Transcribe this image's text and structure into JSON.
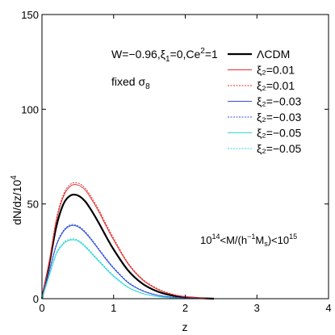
{
  "chart_data": {
    "type": "line",
    "xlabel": "z",
    "ylabel": "dN/dz/10",
    "ylabel_exp": "4",
    "xlim": [
      0,
      4
    ],
    "ylim": [
      0,
      150
    ],
    "xticks": [
      0,
      1,
      2,
      3,
      4
    ],
    "yticks": [
      0,
      50,
      100,
      150
    ],
    "grid": false,
    "legend_placement": "top-right",
    "annotations": {
      "params": {
        "base": "W=−0.96,ξ",
        "sub1": "1",
        "mid": "=0,Ce",
        "sup": "2",
        "end": "=1"
      },
      "fixed": {
        "base": "fixed σ",
        "sub": "8"
      },
      "mass": {
        "p1": "10",
        "s1": "14",
        "p2": "<M/(h",
        "s2": "−1",
        "p3": "M",
        "s3": "s",
        "p4": ")<10",
        "s4": "15"
      }
    },
    "series": [
      {
        "name": "ΛCDM",
        "color": "#000000",
        "width": 2.2,
        "dash": "",
        "x": [
          0,
          0.1,
          0.2,
          0.3,
          0.4,
          0.5,
          0.6,
          0.7,
          0.8,
          0.9,
          1.0,
          1.2,
          1.4,
          1.6,
          1.8,
          2.0,
          2.2,
          2.4
        ],
        "y": [
          0,
          18,
          38,
          50,
          54.5,
          54.5,
          51.5,
          46,
          39.5,
          32.5,
          26,
          15,
          8,
          4,
          1.8,
          0.8,
          0.3,
          0
        ]
      },
      {
        "name": "ξ₂=0.01",
        "color": "#e03030",
        "width": 1,
        "dash": "",
        "x": [
          0,
          0.1,
          0.2,
          0.3,
          0.4,
          0.5,
          0.6,
          0.7,
          0.8,
          0.9,
          1.0,
          1.2,
          1.4,
          1.6,
          1.8,
          2.0,
          2.2,
          2.4
        ],
        "y": [
          0,
          19,
          41,
          54,
          59.5,
          60,
          57.5,
          52,
          45.5,
          38,
          31,
          18.5,
          10,
          5.2,
          2.4,
          1.0,
          0.4,
          0
        ]
      },
      {
        "name": "ξ₂=0.01",
        "color": "#e03030",
        "width": 1,
        "dash": "2,1.5",
        "x": [
          0,
          0.1,
          0.2,
          0.3,
          0.4,
          0.5,
          0.6,
          0.7,
          0.8,
          0.9,
          1.0,
          1.2,
          1.4,
          1.6,
          1.8,
          2.0,
          2.2,
          2.4
        ],
        "y": [
          0,
          19.5,
          42,
          55,
          60.5,
          61,
          58.5,
          53,
          46.5,
          39,
          32,
          19,
          10.5,
          5.5,
          2.6,
          1.1,
          0.4,
          0
        ]
      },
      {
        "name": "ξ₂=−0.03",
        "color": "#3050e0",
        "width": 1,
        "dash": "",
        "x": [
          0,
          0.1,
          0.2,
          0.3,
          0.4,
          0.5,
          0.6,
          0.7,
          0.8,
          0.9,
          1.0,
          1.2,
          1.4,
          1.6,
          1.8,
          2.0,
          2.2
        ],
        "y": [
          0,
          14,
          28,
          35.5,
          38.5,
          38,
          35,
          30.5,
          25.5,
          20.5,
          16,
          8.5,
          4.2,
          1.9,
          0.8,
          0.3,
          0
        ]
      },
      {
        "name": "ξ₂=−0.03",
        "color": "#3050e0",
        "width": 1,
        "dash": "2,1.5",
        "x": [
          0,
          0.1,
          0.2,
          0.3,
          0.4,
          0.5,
          0.6,
          0.7,
          0.8,
          0.9,
          1.0,
          1.2,
          1.4,
          1.6,
          1.8,
          2.0,
          2.2
        ],
        "y": [
          0,
          14.5,
          28.5,
          36,
          39,
          38.5,
          35.5,
          31,
          26,
          21,
          16.5,
          8.8,
          4.4,
          2.0,
          0.9,
          0.3,
          0
        ]
      },
      {
        "name": "ξ₂=−0.05",
        "color": "#30d8d8",
        "width": 1,
        "dash": "",
        "x": [
          0,
          0.1,
          0.2,
          0.3,
          0.4,
          0.5,
          0.6,
          0.7,
          0.8,
          0.9,
          1.0,
          1.2,
          1.4,
          1.6,
          1.8,
          2.0
        ],
        "y": [
          0,
          12,
          23.5,
          29,
          31,
          30.5,
          27.5,
          23.5,
          19.5,
          15.5,
          11.8,
          6.0,
          2.8,
          1.2,
          0.4,
          0
        ]
      },
      {
        "name": "ξ₂=−0.05",
        "color": "#30d8d8",
        "width": 1,
        "dash": "2,1.5",
        "x": [
          0,
          0.1,
          0.2,
          0.3,
          0.4,
          0.5,
          0.6,
          0.7,
          0.8,
          0.9,
          1.0,
          1.2,
          1.4,
          1.6,
          1.8,
          2.0
        ],
        "y": [
          0,
          12.5,
          24,
          29.5,
          31.5,
          31,
          28,
          24,
          20,
          16,
          12.2,
          6.2,
          2.9,
          1.3,
          0.5,
          0
        ]
      }
    ]
  }
}
